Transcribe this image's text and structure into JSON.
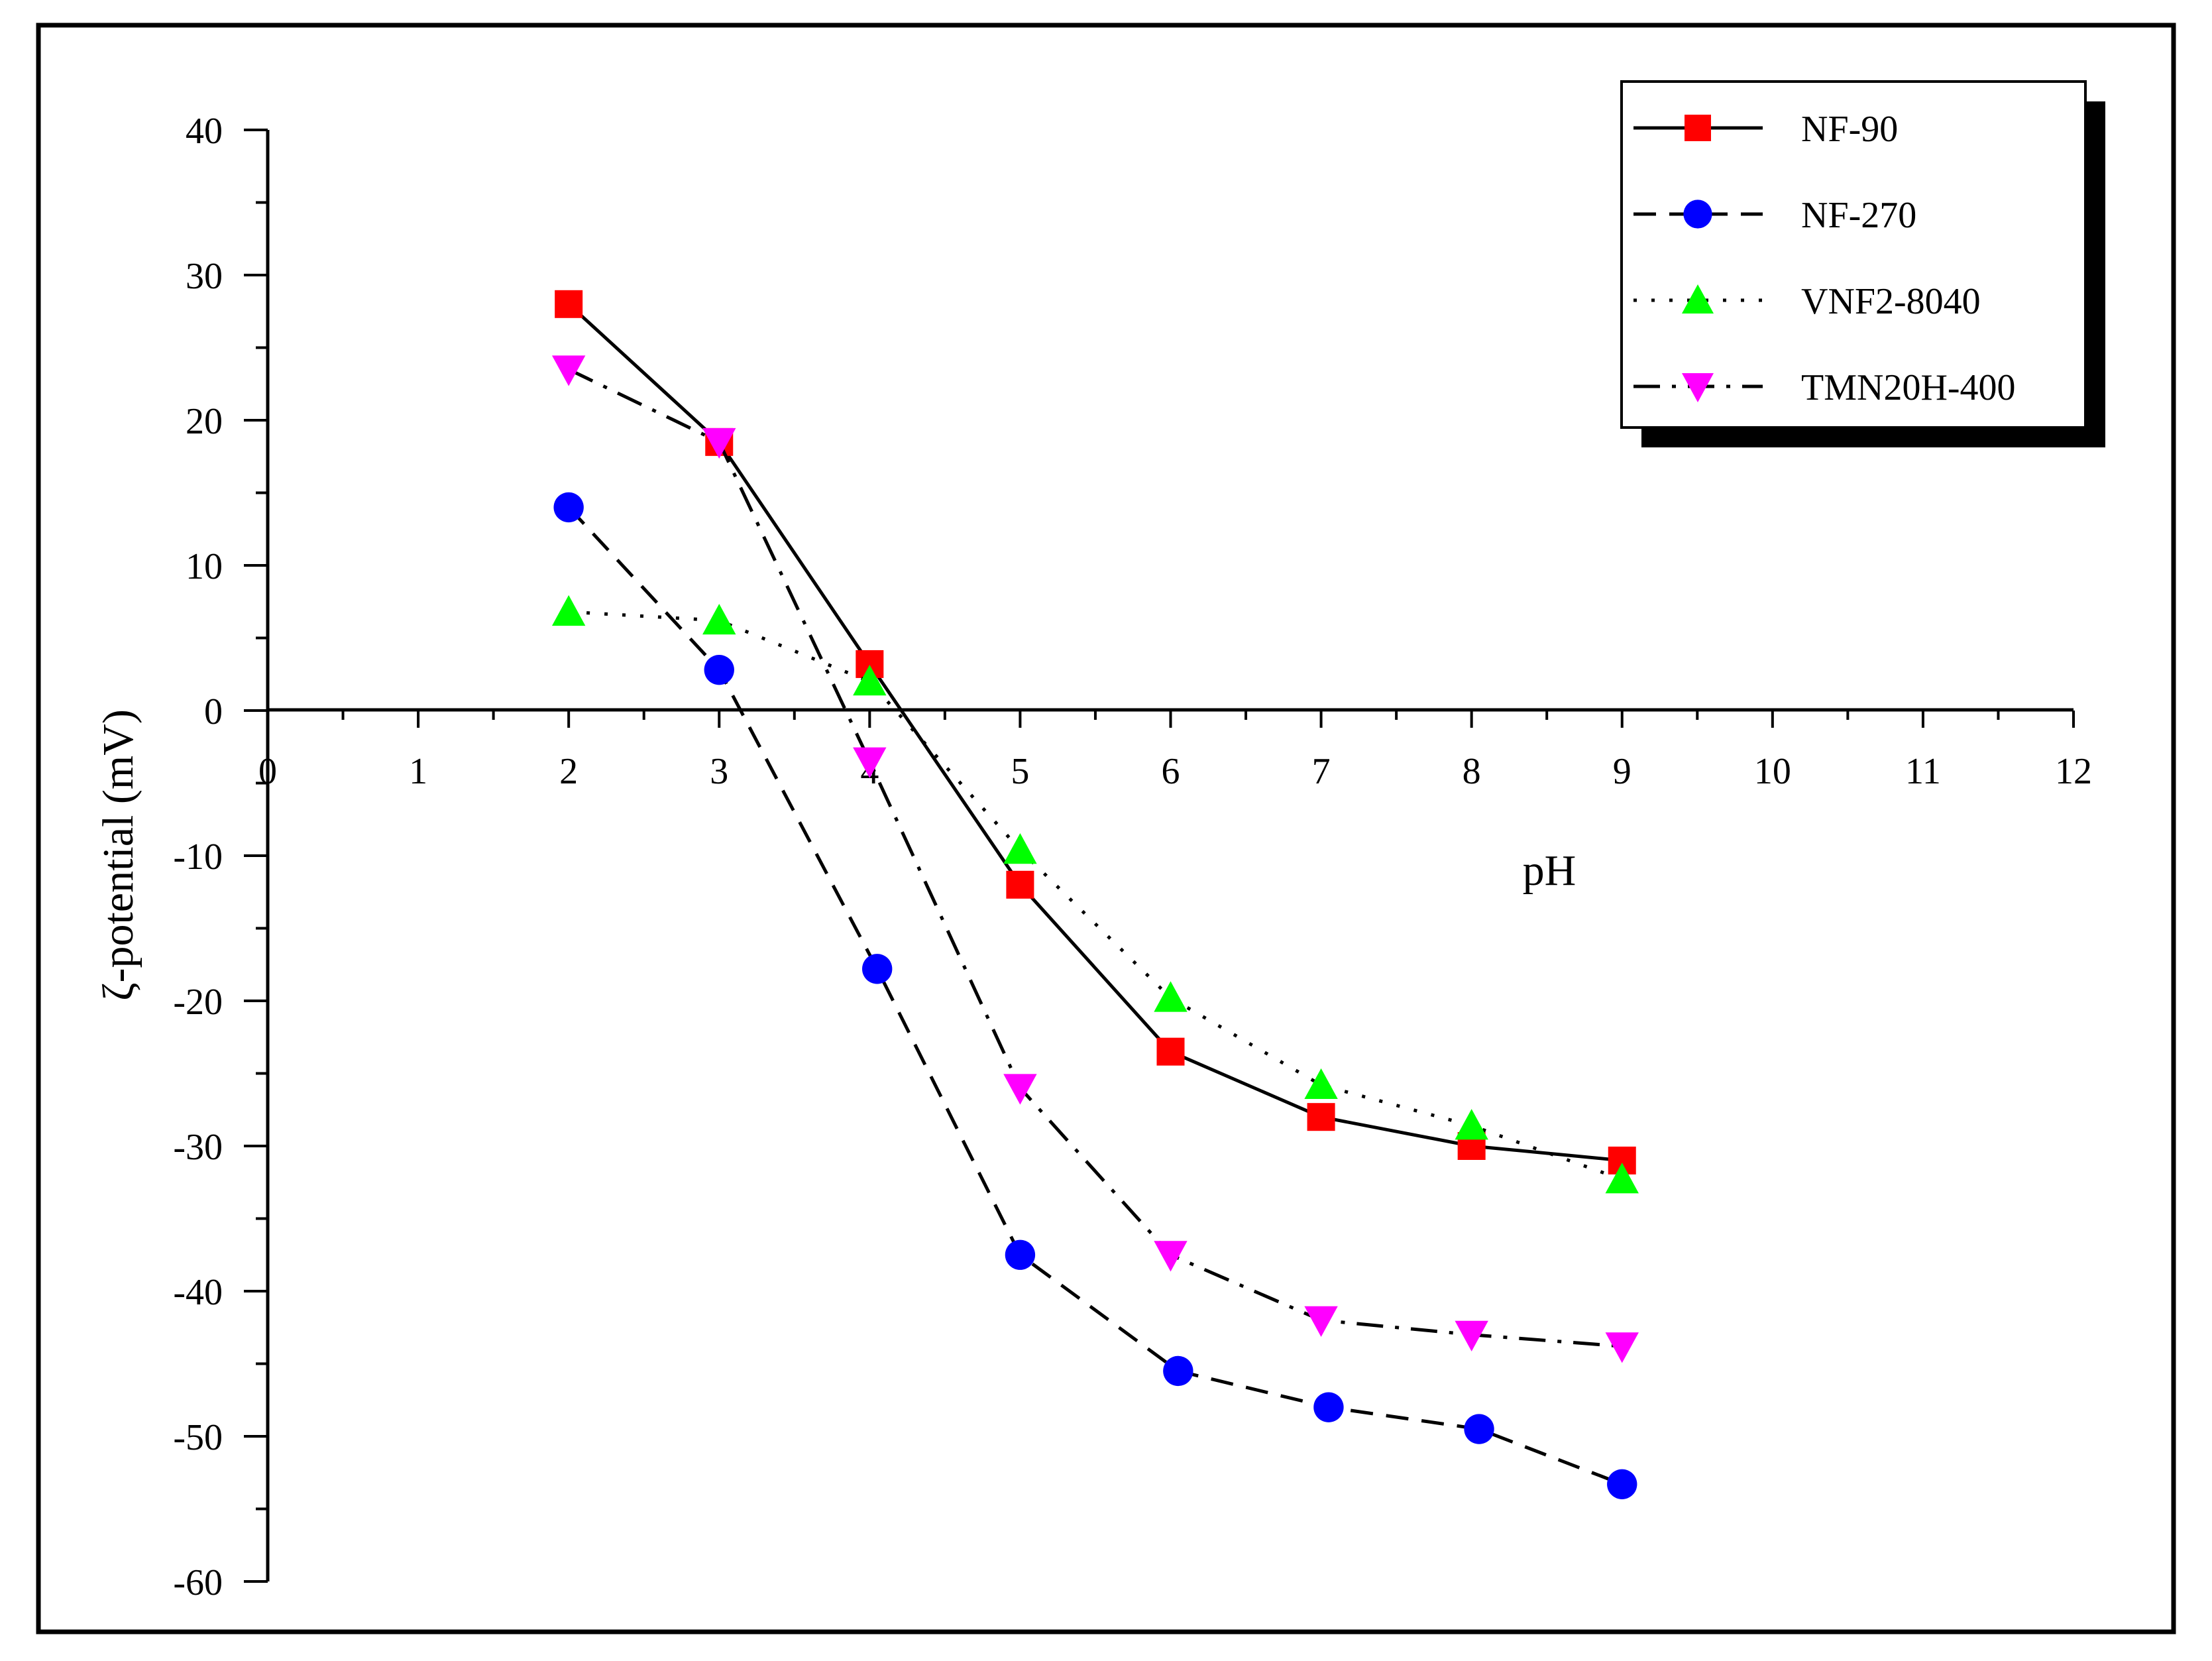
{
  "chart_data": {
    "type": "line",
    "title": "",
    "xlabel": "pH",
    "ylabel": "ζ-potential (mV)",
    "xlim": [
      0,
      12
    ],
    "ylim": [
      -60,
      40
    ],
    "x_ticks": [
      "0",
      "1",
      "2",
      "3",
      "4",
      "5",
      "6",
      "7",
      "8",
      "9",
      "10",
      "11",
      "12"
    ],
    "y_ticks": [
      "40",
      "30",
      "20",
      "10",
      "0",
      "-10",
      "-20",
      "-30",
      "-40",
      "-50",
      "-60"
    ],
    "legend_position": "top-right",
    "series": [
      {
        "name": "NF-90",
        "marker": "square",
        "line_style": "solid",
        "color": "#ff0000",
        "x": [
          2,
          3,
          4,
          5,
          6,
          7,
          8,
          9
        ],
        "values": [
          28,
          18.5,
          3.2,
          -12,
          -23.5,
          -28,
          -30,
          -31
        ]
      },
      {
        "name": "NF-270",
        "marker": "circle",
        "line_style": "dash",
        "color": "#0000ff",
        "x": [
          2,
          3,
          4.05,
          5,
          6.05,
          7.05,
          8.05,
          9
        ],
        "values": [
          14,
          2.8,
          -17.8,
          -37.5,
          -45.5,
          -48,
          -49.5,
          -53.3
        ]
      },
      {
        "name": "VNF2-8040",
        "marker": "triangle-up",
        "line_style": "dot",
        "color": "#00ff00",
        "x": [
          2,
          3,
          4,
          5,
          6,
          7,
          8,
          9
        ],
        "values": [
          6.8,
          6.2,
          2,
          -9.6,
          -19.8,
          -25.8,
          -28.6,
          -32.3
        ]
      },
      {
        "name": "TMN20H-400",
        "marker": "triangle-down",
        "line_style": "dash-dot",
        "color": "#ff00ff",
        "x": [
          2,
          3,
          4,
          5,
          6,
          7,
          8,
          9
        ],
        "values": [
          23.5,
          18.5,
          -3.5,
          -26,
          -37.5,
          -42,
          -43,
          -43.8
        ]
      }
    ]
  }
}
